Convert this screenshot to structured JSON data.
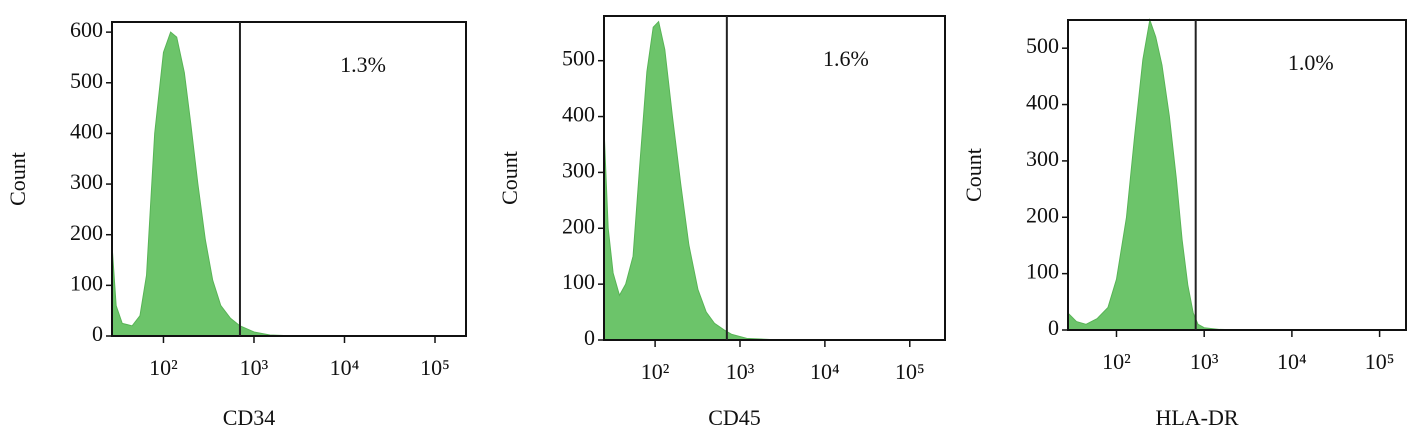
{
  "chart_data": [
    {
      "type": "histogram",
      "xscale": "log",
      "x_label": "CD34",
      "y_label": "Count",
      "annotation": "1.3%",
      "color": "#6cc46a",
      "x": [
        27,
        30,
        35,
        45,
        55,
        65,
        80,
        100,
        120,
        140,
        170,
        200,
        240,
        290,
        350,
        430,
        550,
        700,
        1000,
        1500,
        3000,
        200000
      ],
      "values": [
        180,
        60,
        25,
        20,
        40,
        120,
        400,
        560,
        600,
        590,
        520,
        420,
        300,
        190,
        110,
        60,
        35,
        20,
        8,
        2,
        0,
        0
      ],
      "gate": 700,
      "xlim": [
        27,
        220000
      ],
      "ylim": [
        0,
        620
      ],
      "xticks": [
        {
          "value": 100,
          "label": "10²"
        },
        {
          "value": 1000,
          "label": "10³"
        },
        {
          "value": 10000,
          "label": "10⁴"
        },
        {
          "value": 100000,
          "label": "10⁵"
        }
      ],
      "yticks": [
        0,
        100,
        200,
        300,
        400,
        500,
        600
      ]
    },
    {
      "type": "histogram",
      "xscale": "log",
      "x_label": "CD45",
      "y_label": "Count",
      "annotation": "1.6%",
      "color": "#6cc46a",
      "x": [
        25,
        28,
        32,
        38,
        45,
        55,
        65,
        80,
        95,
        110,
        130,
        160,
        200,
        250,
        320,
        400,
        500,
        650,
        800,
        1200,
        3000,
        250000
      ],
      "values": [
        380,
        200,
        120,
        80,
        100,
        150,
        300,
        480,
        560,
        570,
        520,
        400,
        280,
        170,
        90,
        50,
        30,
        18,
        10,
        3,
        0,
        0
      ],
      "gate": 700,
      "xlim": [
        25,
        260000
      ],
      "ylim": [
        0,
        580
      ],
      "xticks": [
        {
          "value": 100,
          "label": "10²"
        },
        {
          "value": 1000,
          "label": "10³"
        },
        {
          "value": 10000,
          "label": "10⁴"
        },
        {
          "value": 100000,
          "label": "10⁵"
        }
      ],
      "yticks": [
        0,
        100,
        200,
        300,
        400,
        500
      ]
    },
    {
      "type": "histogram",
      "xscale": "log",
      "x_label": "HLA-DR",
      "y_label": "Count",
      "annotation": "1.0%",
      "color": "#6cc46a",
      "x": [
        28,
        35,
        45,
        60,
        80,
        100,
        130,
        160,
        200,
        240,
        280,
        330,
        400,
        480,
        560,
        650,
        750,
        850,
        1000,
        1500,
        3000,
        190000
      ],
      "values": [
        30,
        15,
        10,
        20,
        40,
        90,
        200,
        340,
        480,
        550,
        520,
        470,
        380,
        270,
        160,
        80,
        30,
        10,
        4,
        1,
        0,
        0
      ],
      "gate": 800,
      "xlim": [
        28,
        200000
      ],
      "ylim": [
        0,
        550
      ],
      "xticks": [
        {
          "value": 100,
          "label": "10²"
        },
        {
          "value": 1000,
          "label": "10³"
        },
        {
          "value": 10000,
          "label": "10⁴"
        },
        {
          "value": 100000,
          "label": "10⁵"
        }
      ],
      "yticks": [
        0,
        100,
        200,
        300,
        400,
        500
      ]
    }
  ]
}
